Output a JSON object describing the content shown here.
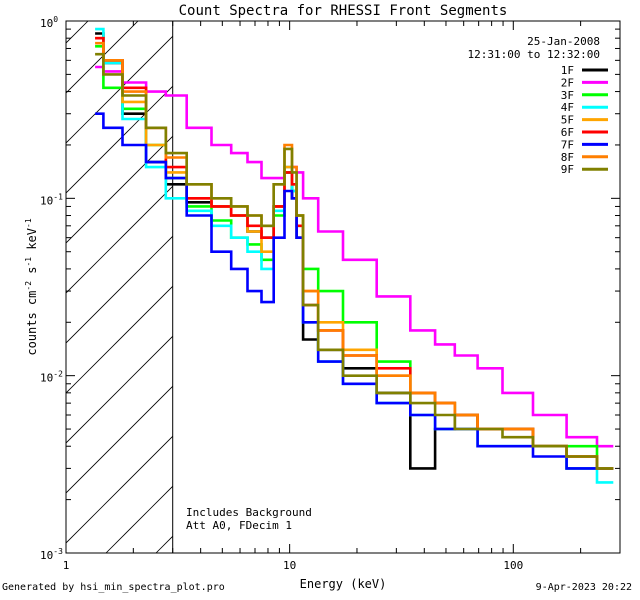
{
  "chart_data": {
    "type": "line",
    "title": "Count Spectra for RHESSI Front Segments",
    "xlabel": "Energy (keV)",
    "ylabel_parts": [
      "counts cm",
      "-2",
      " s",
      "-1",
      " keV",
      "-1"
    ],
    "x_scale": "log",
    "y_scale": "log",
    "xlim": [
      1,
      300
    ],
    "ylim": [
      0.001,
      1
    ],
    "x_ticks": [
      {
        "value": 1,
        "label": "1"
      },
      {
        "value": 10,
        "label": "10"
      },
      {
        "value": 100,
        "label": "100"
      }
    ],
    "y_ticks": [
      {
        "value": 0.001,
        "base": "10",
        "exp": "-3"
      },
      {
        "value": 0.01,
        "base": "10",
        "exp": "-2"
      },
      {
        "value": 0.1,
        "base": "10",
        "exp": "-1"
      },
      {
        "value": 1,
        "base": "10",
        "exp": "0"
      }
    ],
    "shaded_region": {
      "x_from": 1,
      "x_to": 3,
      "style": "hatched",
      "boundary_line_x": 3
    },
    "header_date": "25-Jan-2008",
    "header_time": "12:31:00 to 12:32:00",
    "annotation_lines": [
      "Includes Background",
      "Att A0, FDecim 1"
    ],
    "series": [
      {
        "name": "1F",
        "color": "#000000",
        "points": [
          [
            1.35,
            0.85
          ],
          [
            1.6,
            0.58
          ],
          [
            2,
            0.3
          ],
          [
            2.6,
            0.16
          ],
          [
            3,
            0.12
          ],
          [
            4,
            0.095
          ],
          [
            5,
            0.09
          ],
          [
            6,
            0.08
          ],
          [
            7,
            0.065
          ],
          [
            8,
            0.06
          ],
          [
            9,
            0.09
          ],
          [
            10,
            0.14
          ],
          [
            10.5,
            0.1
          ],
          [
            11,
            0.06
          ],
          [
            12,
            0.016
          ],
          [
            15,
            0.014
          ],
          [
            20,
            0.011
          ],
          [
            30,
            0.008
          ],
          [
            40,
            0.003
          ],
          [
            50,
            0.005
          ],
          [
            60,
            0.006
          ],
          [
            80,
            0.005
          ],
          [
            100,
            0.005
          ],
          [
            150,
            0.004
          ],
          [
            200,
            0.003
          ],
          [
            280,
            0.003
          ]
        ]
      },
      {
        "name": "2F",
        "color": "#ff00ff",
        "points": [
          [
            1.35,
            0.55
          ],
          [
            1.6,
            0.52
          ],
          [
            2,
            0.45
          ],
          [
            2.6,
            0.4
          ],
          [
            3,
            0.38
          ],
          [
            4,
            0.25
          ],
          [
            5,
            0.2
          ],
          [
            6,
            0.18
          ],
          [
            7,
            0.16
          ],
          [
            8,
            0.13
          ],
          [
            9,
            0.13
          ],
          [
            10,
            0.14
          ],
          [
            10.5,
            0.15
          ],
          [
            11,
            0.14
          ],
          [
            12,
            0.1
          ],
          [
            15,
            0.065
          ],
          [
            20,
            0.045
          ],
          [
            30,
            0.028
          ],
          [
            40,
            0.018
          ],
          [
            50,
            0.015
          ],
          [
            60,
            0.013
          ],
          [
            80,
            0.011
          ],
          [
            100,
            0.008
          ],
          [
            150,
            0.006
          ],
          [
            200,
            0.0045
          ],
          [
            280,
            0.004
          ]
        ]
      },
      {
        "name": "3F",
        "color": "#00ff00",
        "points": [
          [
            1.35,
            0.72
          ],
          [
            1.6,
            0.42
          ],
          [
            2,
            0.32
          ],
          [
            2.6,
            0.2
          ],
          [
            3,
            0.13
          ],
          [
            4,
            0.09
          ],
          [
            5,
            0.075
          ],
          [
            6,
            0.06
          ],
          [
            7,
            0.055
          ],
          [
            8,
            0.045
          ],
          [
            9,
            0.08
          ],
          [
            10,
            0.14
          ],
          [
            10.5,
            0.11
          ],
          [
            11,
            0.08
          ],
          [
            12,
            0.04
          ],
          [
            15,
            0.03
          ],
          [
            20,
            0.02
          ],
          [
            30,
            0.012
          ],
          [
            40,
            0.008
          ],
          [
            50,
            0.007
          ],
          [
            60,
            0.006
          ],
          [
            80,
            0.005
          ],
          [
            100,
            0.005
          ],
          [
            150,
            0.004
          ],
          [
            200,
            0.004
          ],
          [
            280,
            0.003
          ]
        ]
      },
      {
        "name": "4F",
        "color": "#00ffff",
        "points": [
          [
            1.35,
            0.9
          ],
          [
            1.6,
            0.58
          ],
          [
            2,
            0.28
          ],
          [
            2.6,
            0.15
          ],
          [
            3,
            0.1
          ],
          [
            4,
            0.085
          ],
          [
            5,
            0.07
          ],
          [
            6,
            0.06
          ],
          [
            7,
            0.05
          ],
          [
            8,
            0.04
          ],
          [
            9,
            0.085
          ],
          [
            10,
            0.15
          ],
          [
            10.5,
            0.11
          ],
          [
            11,
            0.07
          ],
          [
            12,
            0.02
          ],
          [
            15,
            0.012
          ],
          [
            20,
            0.009
          ],
          [
            30,
            0.007
          ],
          [
            40,
            0.006
          ],
          [
            50,
            0.005
          ],
          [
            60,
            0.005
          ],
          [
            80,
            0.004
          ],
          [
            100,
            0.004
          ],
          [
            150,
            0.004
          ],
          [
            200,
            0.003
          ],
          [
            280,
            0.0025
          ]
        ]
      },
      {
        "name": "5F",
        "color": "#ffa500",
        "points": [
          [
            1.35,
            0.8
          ],
          [
            1.6,
            0.6
          ],
          [
            2,
            0.35
          ],
          [
            2.6,
            0.2
          ],
          [
            3,
            0.14
          ],
          [
            4,
            0.1
          ],
          [
            5,
            0.09
          ],
          [
            6,
            0.08
          ],
          [
            7,
            0.065
          ],
          [
            8,
            0.05
          ],
          [
            9,
            0.09
          ],
          [
            10,
            0.15
          ],
          [
            10.5,
            0.12
          ],
          [
            11,
            0.08
          ],
          [
            12,
            0.03
          ],
          [
            15,
            0.02
          ],
          [
            20,
            0.014
          ],
          [
            30,
            0.01
          ],
          [
            40,
            0.008
          ],
          [
            50,
            0.007
          ],
          [
            60,
            0.006
          ],
          [
            80,
            0.005
          ],
          [
            100,
            0.005
          ],
          [
            150,
            0.004
          ],
          [
            200,
            0.0035
          ],
          [
            280,
            0.003
          ]
        ]
      },
      {
        "name": "6F",
        "color": "#ff0000",
        "points": [
          [
            1.35,
            0.8
          ],
          [
            1.6,
            0.6
          ],
          [
            2,
            0.42
          ],
          [
            2.6,
            0.25
          ],
          [
            3,
            0.15
          ],
          [
            4,
            0.1
          ],
          [
            5,
            0.09
          ],
          [
            6,
            0.08
          ],
          [
            7,
            0.07
          ],
          [
            8,
            0.06
          ],
          [
            9,
            0.09
          ],
          [
            10,
            0.14
          ],
          [
            10.5,
            0.12
          ],
          [
            11,
            0.07
          ],
          [
            12,
            0.025
          ],
          [
            15,
            0.018
          ],
          [
            20,
            0.013
          ],
          [
            30,
            0.011
          ],
          [
            40,
            0.008
          ],
          [
            50,
            0.007
          ],
          [
            60,
            0.006
          ],
          [
            80,
            0.005
          ],
          [
            100,
            0.005
          ],
          [
            150,
            0.004
          ],
          [
            200,
            0.0035
          ],
          [
            280,
            0.003
          ]
        ]
      },
      {
        "name": "7F",
        "color": "#0000ff",
        "points": [
          [
            1.35,
            0.3
          ],
          [
            1.6,
            0.25
          ],
          [
            2,
            0.2
          ],
          [
            2.6,
            0.16
          ],
          [
            3,
            0.13
          ],
          [
            4,
            0.08
          ],
          [
            5,
            0.05
          ],
          [
            6,
            0.04
          ],
          [
            7,
            0.03
          ],
          [
            8,
            0.026
          ],
          [
            9,
            0.06
          ],
          [
            10,
            0.11
          ],
          [
            10.5,
            0.1
          ],
          [
            11,
            0.06
          ],
          [
            12,
            0.02
          ],
          [
            15,
            0.012
          ],
          [
            20,
            0.009
          ],
          [
            30,
            0.007
          ],
          [
            40,
            0.006
          ],
          [
            50,
            0.005
          ],
          [
            60,
            0.005
          ],
          [
            80,
            0.004
          ],
          [
            100,
            0.004
          ],
          [
            150,
            0.0035
          ],
          [
            200,
            0.003
          ],
          [
            280,
            0.003
          ]
        ]
      },
      {
        "name": "8F",
        "color": "#ff7f00",
        "points": [
          [
            1.35,
            0.75
          ],
          [
            1.6,
            0.6
          ],
          [
            2,
            0.4
          ],
          [
            2.6,
            0.25
          ],
          [
            3,
            0.17
          ],
          [
            4,
            0.12
          ],
          [
            5,
            0.1
          ],
          [
            6,
            0.09
          ],
          [
            7,
            0.08
          ],
          [
            8,
            0.07
          ],
          [
            9,
            0.12
          ],
          [
            10,
            0.2
          ],
          [
            10.5,
            0.15
          ],
          [
            11,
            0.08
          ],
          [
            12,
            0.03
          ],
          [
            15,
            0.018
          ],
          [
            20,
            0.013
          ],
          [
            30,
            0.01
          ],
          [
            40,
            0.008
          ],
          [
            50,
            0.007
          ],
          [
            60,
            0.006
          ],
          [
            80,
            0.005
          ],
          [
            100,
            0.005
          ],
          [
            150,
            0.004
          ],
          [
            200,
            0.0035
          ],
          [
            280,
            0.003
          ]
        ]
      },
      {
        "name": "9F",
        "color": "#808000",
        "points": [
          [
            1.35,
            0.65
          ],
          [
            1.6,
            0.5
          ],
          [
            2,
            0.38
          ],
          [
            2.6,
            0.25
          ],
          [
            3,
            0.18
          ],
          [
            4,
            0.12
          ],
          [
            5,
            0.1
          ],
          [
            6,
            0.09
          ],
          [
            7,
            0.08
          ],
          [
            8,
            0.07
          ],
          [
            9,
            0.12
          ],
          [
            10,
            0.19
          ],
          [
            10.5,
            0.14
          ],
          [
            11,
            0.08
          ],
          [
            12,
            0.025
          ],
          [
            15,
            0.014
          ],
          [
            20,
            0.01
          ],
          [
            30,
            0.008
          ],
          [
            40,
            0.007
          ],
          [
            50,
            0.006
          ],
          [
            60,
            0.005
          ],
          [
            80,
            0.005
          ],
          [
            100,
            0.0045
          ],
          [
            150,
            0.004
          ],
          [
            200,
            0.0035
          ],
          [
            280,
            0.003
          ]
        ]
      }
    ]
  },
  "footer": {
    "left": "Generated by hsi_min_spectra_plot.pro",
    "right": "9-Apr-2023 20:22"
  }
}
